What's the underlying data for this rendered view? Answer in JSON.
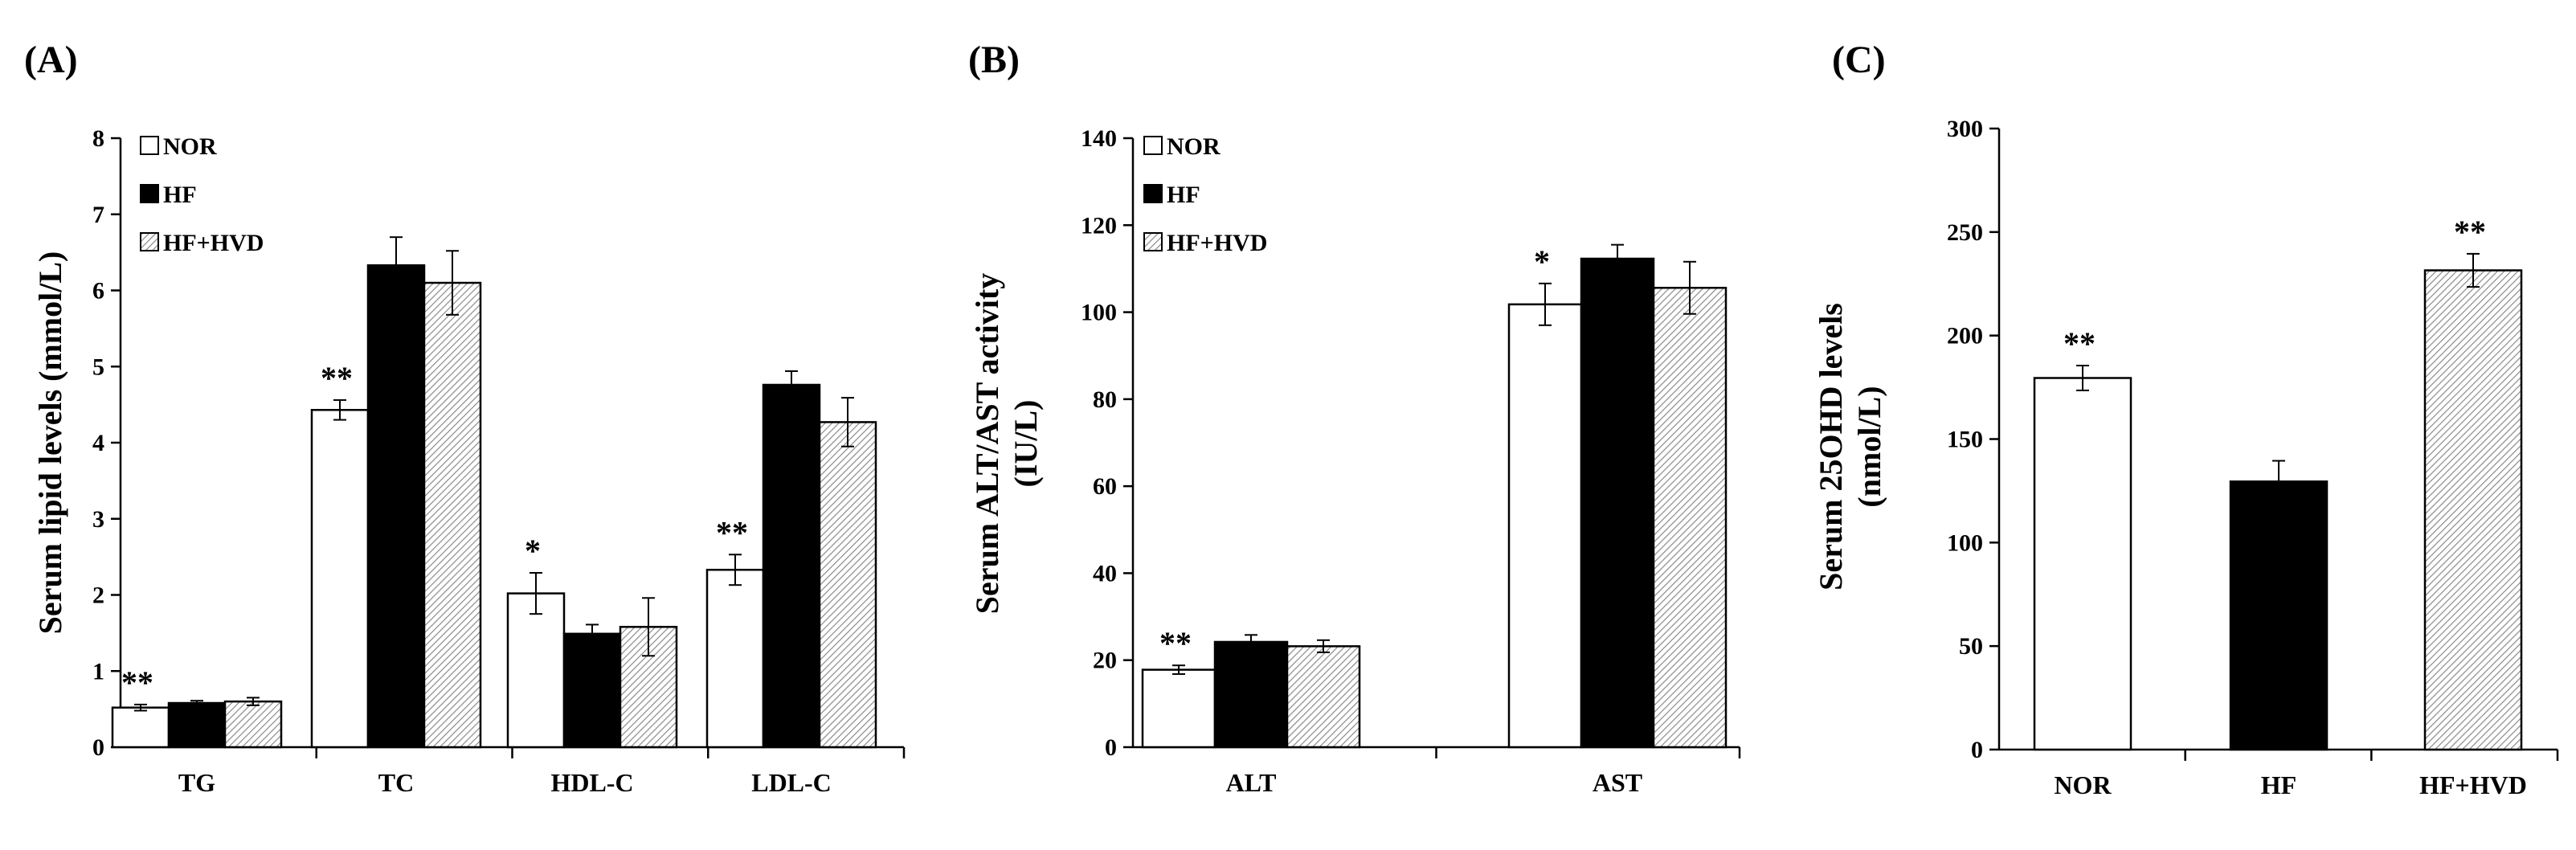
{
  "chart_data": [
    {
      "type": "bar",
      "panel": "(A)",
      "ylabel": "Serum lipid levels (mmol/L)",
      "ylim": [
        0,
        8
      ],
      "yticks": [
        0,
        1,
        2,
        3,
        4,
        5,
        6,
        7,
        8
      ],
      "categories": [
        "TG",
        "TC",
        "HDL-C",
        "LDL-C"
      ],
      "legend": [
        "NOR",
        "HF",
        "HF+HVD"
      ],
      "series": [
        {
          "name": "NOR",
          "values": [
            0.52,
            4.43,
            2.02,
            2.33
          ],
          "errors": [
            0.04,
            0.13,
            0.27,
            0.2
          ],
          "sig": [
            "**",
            "**",
            "*",
            "**"
          ]
        },
        {
          "name": "HF",
          "values": [
            0.58,
            6.33,
            1.49,
            4.76
          ],
          "errors": [
            0.03,
            0.37,
            0.12,
            0.18
          ],
          "sig": [
            "",
            "",
            "",
            ""
          ]
        },
        {
          "name": "HF+HVD",
          "values": [
            0.6,
            6.1,
            1.58,
            4.27
          ],
          "errors": [
            0.05,
            0.42,
            0.38,
            0.32
          ],
          "sig": [
            "",
            "",
            "",
            ""
          ]
        }
      ]
    },
    {
      "type": "bar",
      "panel": "(B)",
      "ylabel": "Serum ALT/AST activity (IU/L)",
      "ylabel_lines": [
        "Serum ALT/AST activity",
        "(IU/L)"
      ],
      "ylim": [
        0,
        140
      ],
      "yticks": [
        0,
        20,
        40,
        60,
        80,
        100,
        120,
        140
      ],
      "categories": [
        "ALT",
        "AST"
      ],
      "legend": [
        "NOR",
        "HF",
        "HF+HVD"
      ],
      "series": [
        {
          "name": "NOR",
          "values": [
            17.8,
            101.8
          ],
          "errors": [
            1.0,
            4.8
          ],
          "sig": [
            "**",
            "*"
          ]
        },
        {
          "name": "HF",
          "values": [
            24.2,
            112.3
          ],
          "errors": [
            1.6,
            3.2
          ],
          "sig": [
            "",
            ""
          ]
        },
        {
          "name": "HF+HVD",
          "values": [
            23.2,
            105.6
          ],
          "errors": [
            1.4,
            6.0
          ],
          "sig": [
            "",
            ""
          ]
        }
      ]
    },
    {
      "type": "bar",
      "panel": "(C)",
      "ylabel": "Serum 25OHD levels (nmol/L)",
      "ylabel_lines": [
        "Serum 25OHD levels",
        "(nmol/L)"
      ],
      "ylim": [
        0,
        300
      ],
      "yticks": [
        0,
        50,
        100,
        150,
        200,
        250,
        300
      ],
      "categories": [
        "NOR",
        "HF",
        "HF+HVD"
      ],
      "bars": [
        {
          "category": "NOR",
          "value": 179.5,
          "error": 6.0,
          "sig": "**",
          "fill": "white"
        },
        {
          "category": "HF",
          "value": 129.5,
          "error": 10.0,
          "sig": "",
          "fill": "black"
        },
        {
          "category": "HF+HVD",
          "value": 231.5,
          "error": 8.0,
          "sig": "**",
          "fill": "hatch"
        }
      ]
    }
  ]
}
